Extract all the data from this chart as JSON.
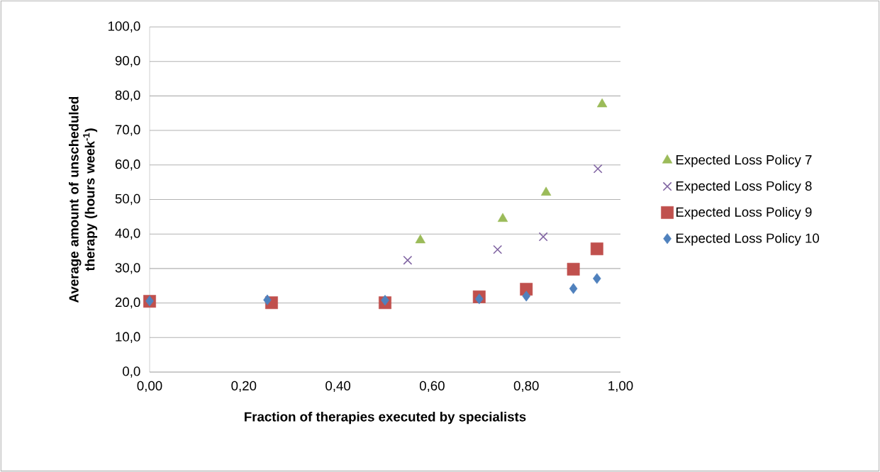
{
  "chart_data": {
    "type": "scatter",
    "xlabel": "Fraction of therapies executed by specialists",
    "ylabel": "Average amount of unscheduled therapy (hours week$^{-1}$)",
    "xlim": [
      0,
      1
    ],
    "ylim": [
      0,
      100
    ],
    "xticks": [
      {
        "value": 0,
        "label": "0,00"
      },
      {
        "value": 0.2,
        "label": "0,20"
      },
      {
        "value": 0.4,
        "label": "0,40"
      },
      {
        "value": 0.6,
        "label": "0,60"
      },
      {
        "value": 0.8,
        "label": "0,80"
      },
      {
        "value": 1,
        "label": "1,00"
      }
    ],
    "yticks": [
      {
        "value": 0,
        "label": "0,0"
      },
      {
        "value": 10,
        "label": "10,0"
      },
      {
        "value": 20,
        "label": "20,0"
      },
      {
        "value": 30,
        "label": "30,0"
      },
      {
        "value": 40,
        "label": "40,0"
      },
      {
        "value": 50,
        "label": "50,0"
      },
      {
        "value": 60,
        "label": "60,0"
      },
      {
        "value": 70,
        "label": "70,0"
      },
      {
        "value": 80,
        "label": "80,0"
      },
      {
        "value": 90,
        "label": "90,0"
      },
      {
        "value": 100,
        "label": "100,0"
      }
    ],
    "grid": "y",
    "legend": "right",
    "series": [
      {
        "name": "Expected Loss Policy 7",
        "color": "#9bbb59",
        "marker": "triangle",
        "x": [
          0.575,
          0.75,
          0.842,
          0.961
        ],
        "values": [
          38.2,
          44.4,
          52.0,
          77.6
        ]
      },
      {
        "name": "Expected Loss Policy 8",
        "color": "#8064a2",
        "marker": "cross",
        "x": [
          0.548,
          0.739,
          0.836,
          0.952
        ],
        "values": [
          32.4,
          35.5,
          39.2,
          58.9
        ]
      },
      {
        "name": "Expected Loss Policy 9",
        "color": "#c0504d",
        "marker": "square",
        "x": [
          0,
          0.259,
          0.5,
          0.7,
          0.8,
          0.9,
          0.95
        ],
        "values": [
          20.5,
          20.1,
          20.1,
          21.8,
          24.0,
          29.8,
          35.7
        ]
      },
      {
        "name": "Expected Loss Policy 10",
        "color": "#4f81bd",
        "marker": "diamond",
        "x": [
          0,
          0.25,
          0.5,
          0.7,
          0.8,
          0.9,
          0.95
        ],
        "values": [
          20.6,
          20.9,
          20.8,
          21.2,
          22.0,
          24.2,
          27.1
        ]
      }
    ]
  }
}
